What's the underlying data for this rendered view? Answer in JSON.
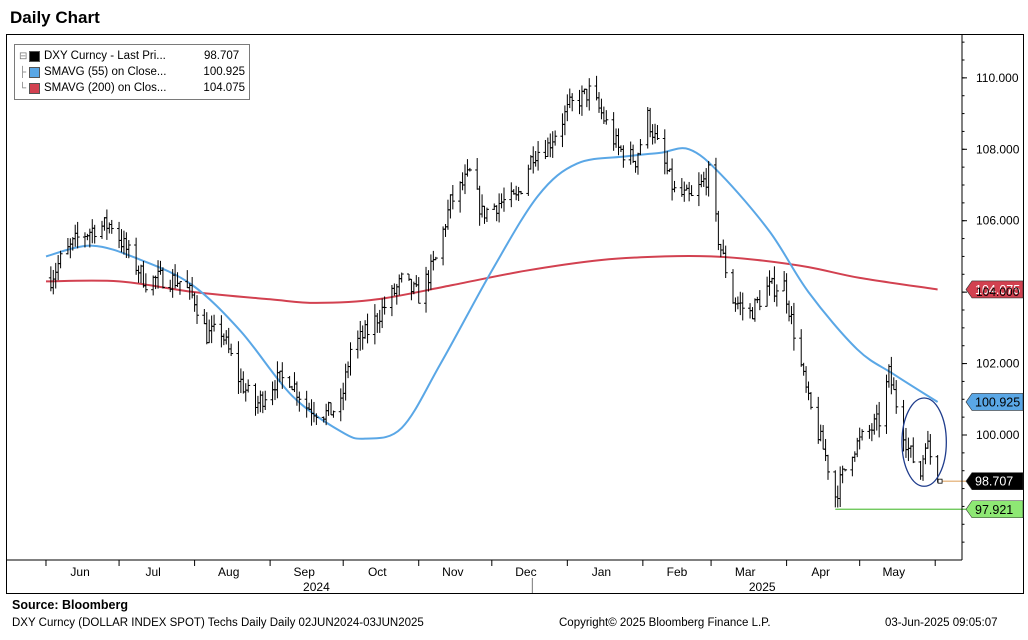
{
  "title": "Daily Chart",
  "source": "Source:  Bloomberg",
  "footer": {
    "left": "DXY Curncy (DOLLAR INDEX SPOT) Techs Daily  Daily 02JUN2024-03JUN2025",
    "middle": "Copyright© 2025 Bloomberg Finance L.P.",
    "right": "03-Jun-2025 09:05:07"
  },
  "legend": [
    {
      "name": "DXY Curncy - Last Pri...",
      "value": "98.707",
      "color": "#000000"
    },
    {
      "name": "SMAVG (55)  on Close...",
      "value": "100.925",
      "color": "#5aa7e6"
    },
    {
      "name": "SMAVG (200)  on Clos...",
      "value": "104.075",
      "color": "#d24150"
    }
  ],
  "chart_data": {
    "type": "line",
    "x_ticks": [
      "Jun",
      "Jul",
      "Aug",
      "Sep",
      "Oct",
      "Nov",
      "Dec",
      "Jan",
      "Feb",
      "Mar",
      "Apr",
      "May"
    ],
    "year_labels": [
      "2024",
      "2025"
    ],
    "y_ticks": [
      "110.000",
      "108.000",
      "106.000",
      "104.000",
      "102.000",
      "100.000"
    ],
    "ylim": [
      96.5,
      111.2
    ],
    "axis_side": "right",
    "legend_position": "top-left",
    "series": [
      {
        "name": "DXY Curncy - Last Pri...",
        "style": "ohlc",
        "color": "#000000",
        "points": [
          [
            "2024-06-03",
            104.4
          ],
          [
            "2024-06-07",
            104.9
          ],
          [
            "2024-06-14",
            105.5
          ],
          [
            "2024-06-21",
            105.8
          ],
          [
            "2024-06-28",
            105.9
          ],
          [
            "2024-07-03",
            105.3
          ],
          [
            "2024-07-12",
            104.3
          ],
          [
            "2024-07-19",
            104.4
          ],
          [
            "2024-07-26",
            104.3
          ],
          [
            "2024-08-01",
            103.8
          ],
          [
            "2024-08-06",
            102.8
          ],
          [
            "2024-08-12",
            102.9
          ],
          [
            "2024-08-19",
            101.6
          ],
          [
            "2024-08-26",
            100.8
          ],
          [
            "2024-09-03",
            101.5
          ],
          [
            "2024-09-09",
            101.6
          ],
          [
            "2024-09-16",
            100.8
          ],
          [
            "2024-09-24",
            100.6
          ],
          [
            "2024-09-30",
            100.8
          ],
          [
            "2024-10-04",
            102.4
          ],
          [
            "2024-10-11",
            102.9
          ],
          [
            "2024-10-18",
            103.6
          ],
          [
            "2024-10-25",
            104.3
          ],
          [
            "2024-11-01",
            103.9
          ],
          [
            "2024-11-08",
            104.9
          ],
          [
            "2024-11-14",
            106.5
          ],
          [
            "2024-11-22",
            107.3
          ],
          [
            "2024-11-27",
            106.2
          ],
          [
            "2024-12-04",
            106.5
          ],
          [
            "2024-12-11",
            106.6
          ],
          [
            "2024-12-18",
            107.9
          ],
          [
            "2024-12-24",
            108.1
          ],
          [
            "2025-01-02",
            109.2
          ],
          [
            "2025-01-10",
            109.6
          ],
          [
            "2025-01-15",
            109.0
          ],
          [
            "2025-01-22",
            108.0
          ],
          [
            "2025-01-29",
            107.7
          ],
          [
            "2025-02-03",
            108.9
          ],
          [
            "2025-02-07",
            108.1
          ],
          [
            "2025-02-14",
            106.8
          ],
          [
            "2025-02-21",
            106.6
          ],
          [
            "2025-02-28",
            107.3
          ],
          [
            "2025-03-04",
            105.5
          ],
          [
            "2025-03-10",
            103.8
          ],
          [
            "2025-03-17",
            103.4
          ],
          [
            "2025-03-24",
            104.1
          ],
          [
            "2025-03-31",
            104.2
          ],
          [
            "2025-04-04",
            102.9
          ],
          [
            "2025-04-10",
            100.9
          ],
          [
            "2025-04-17",
            99.4
          ],
          [
            "2025-04-21",
            98.3
          ],
          [
            "2025-04-28",
            99.6
          ],
          [
            "2025-05-02",
            99.9
          ],
          [
            "2025-05-09",
            100.4
          ],
          [
            "2025-05-13",
            101.7
          ],
          [
            "2025-05-16",
            100.9
          ],
          [
            "2025-05-21",
            99.6
          ],
          [
            "2025-05-26",
            98.9
          ],
          [
            "2025-05-28",
            99.9
          ],
          [
            "2025-06-02",
            98.707
          ]
        ]
      },
      {
        "name": "SMAVG (55)  on Close...",
        "style": "line",
        "color": "#5aa7e6",
        "last_value": "100.925",
        "points": [
          [
            "2024-06-01",
            105.0
          ],
          [
            "2024-06-20",
            105.3
          ],
          [
            "2024-07-10",
            104.9
          ],
          [
            "2024-07-31",
            104.2
          ],
          [
            "2024-08-20",
            102.9
          ],
          [
            "2024-09-10",
            101.1
          ],
          [
            "2024-09-30",
            100.1
          ],
          [
            "2024-10-10",
            99.9
          ],
          [
            "2024-10-25",
            100.2
          ],
          [
            "2024-11-10",
            102.0
          ],
          [
            "2024-12-01",
            104.6
          ],
          [
            "2024-12-20",
            106.7
          ],
          [
            "2025-01-05",
            107.6
          ],
          [
            "2025-01-25",
            107.8
          ],
          [
            "2025-02-08",
            107.9
          ],
          [
            "2025-02-20",
            108.0
          ],
          [
            "2025-03-05",
            107.3
          ],
          [
            "2025-03-25",
            105.7
          ],
          [
            "2025-04-10",
            104.0
          ],
          [
            "2025-04-30",
            102.4
          ],
          [
            "2025-05-15",
            101.7
          ],
          [
            "2025-06-02",
            100.925
          ]
        ]
      },
      {
        "name": "SMAVG (200)  on Clos...",
        "style": "line",
        "color": "#d24150",
        "last_value": "104.075",
        "points": [
          [
            "2024-06-01",
            104.3
          ],
          [
            "2024-07-01",
            104.3
          ],
          [
            "2024-08-01",
            104.0
          ],
          [
            "2024-09-01",
            103.8
          ],
          [
            "2024-09-20",
            103.7
          ],
          [
            "2024-10-15",
            103.8
          ],
          [
            "2024-11-15",
            104.2
          ],
          [
            "2024-12-15",
            104.6
          ],
          [
            "2025-01-15",
            104.9
          ],
          [
            "2025-02-10",
            105.0
          ],
          [
            "2025-03-01",
            105.0
          ],
          [
            "2025-03-20",
            104.9
          ],
          [
            "2025-04-10",
            104.7
          ],
          [
            "2025-05-01",
            104.4
          ],
          [
            "2025-06-02",
            104.075
          ]
        ]
      }
    ],
    "annotations": [
      {
        "label": "97.921",
        "value": 97.921,
        "color": "#8ee874",
        "line_color": "#5fc24a",
        "from_date": "2025-04-21"
      },
      {
        "label": "98.707",
        "value": 98.707,
        "color": "#000000",
        "line_color": "#e0a868"
      },
      {
        "label": "100.925",
        "value": 100.925,
        "color": "#5aa7e6"
      },
      {
        "label": "104.075",
        "value": 104.075,
        "color": "#d24150"
      }
    ],
    "highlight_circle": {
      "from_date": "2025-05-20",
      "to_date": "2025-05-30",
      "y_low": 98.9,
      "y_high": 100.7,
      "color": "#1f3c8c"
    }
  }
}
